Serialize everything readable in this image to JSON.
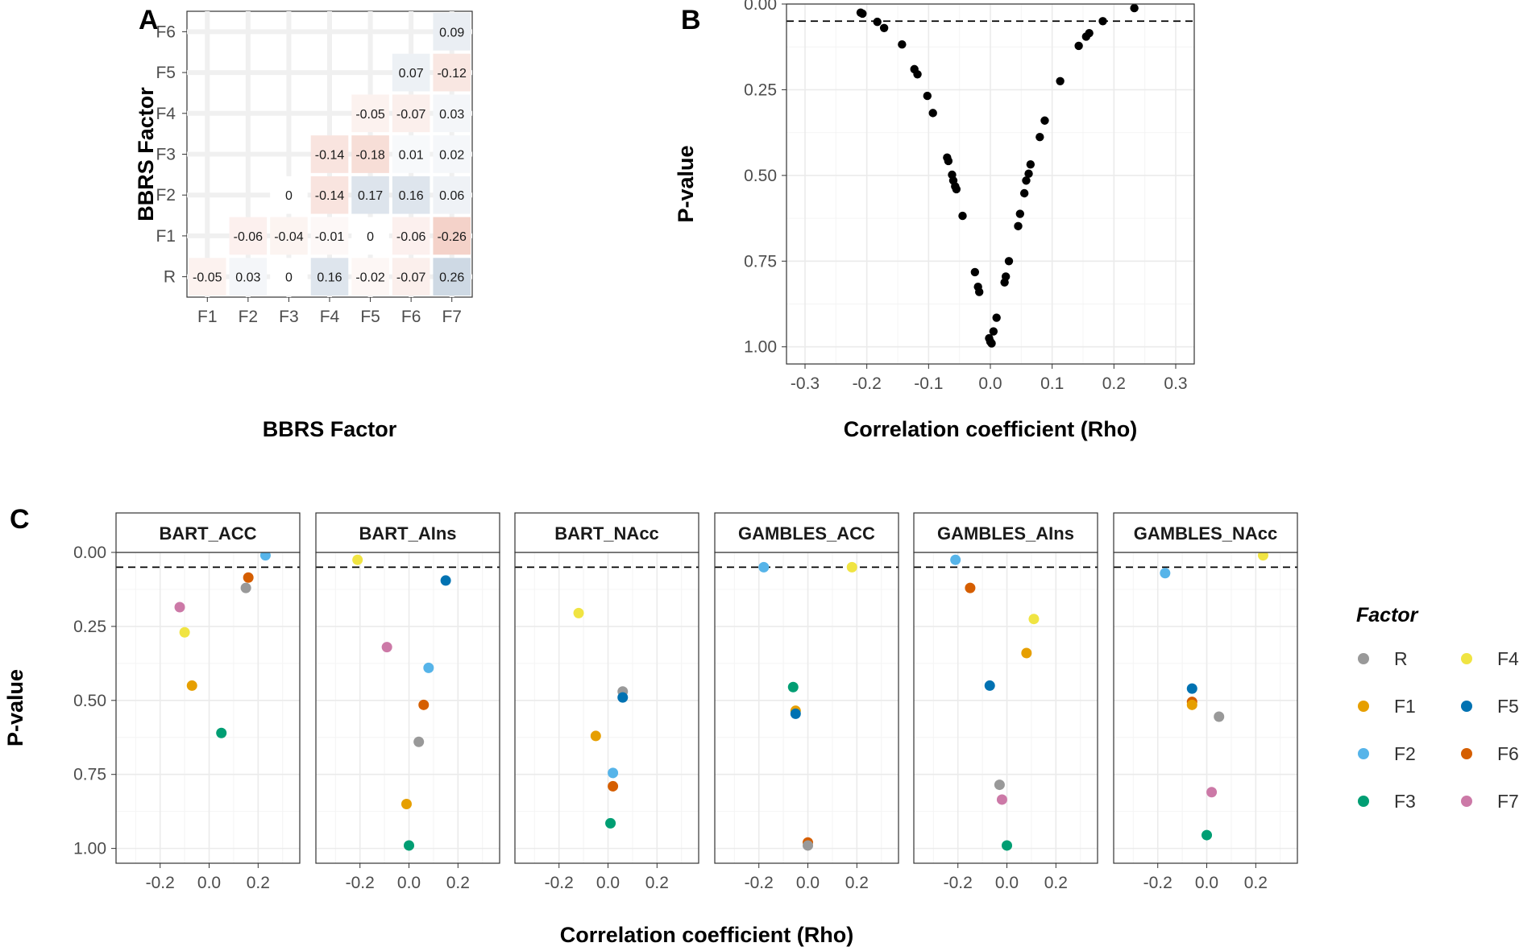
{
  "chart_data": [
    {
      "panel": "A",
      "type": "heatmap",
      "xlabel": "BBRS Factor",
      "ylabel": "BBRS Factor",
      "x_categories": [
        "F1",
        "F2",
        "F3",
        "F4",
        "F5",
        "F6",
        "F7"
      ],
      "y_categories": [
        "R",
        "F1",
        "F2",
        "F3",
        "F4",
        "F5",
        "F6"
      ],
      "cells": [
        {
          "x": "F1",
          "y": "R",
          "value": -0.05,
          "label": "-0.05"
        },
        {
          "x": "F2",
          "y": "R",
          "value": 0.03,
          "label": "0.03"
        },
        {
          "x": "F3",
          "y": "R",
          "value": 0,
          "label": "0"
        },
        {
          "x": "F4",
          "y": "R",
          "value": 0.16,
          "label": "0.16"
        },
        {
          "x": "F5",
          "y": "R",
          "value": -0.02,
          "label": "-0.02"
        },
        {
          "x": "F6",
          "y": "R",
          "value": -0.07,
          "label": "-0.07"
        },
        {
          "x": "F7",
          "y": "R",
          "value": 0.26,
          "label": "0.26"
        },
        {
          "x": "F2",
          "y": "F1",
          "value": -0.06,
          "label": "-0.06"
        },
        {
          "x": "F3",
          "y": "F1",
          "value": -0.04,
          "label": "-0.04"
        },
        {
          "x": "F4",
          "y": "F1",
          "value": -0.01,
          "label": "-0.01"
        },
        {
          "x": "F5",
          "y": "F1",
          "value": 0,
          "label": "0"
        },
        {
          "x": "F6",
          "y": "F1",
          "value": -0.06,
          "label": "-0.06"
        },
        {
          "x": "F7",
          "y": "F1",
          "value": -0.26,
          "label": "-0.26"
        },
        {
          "x": "F3",
          "y": "F2",
          "value": 0,
          "label": "0"
        },
        {
          "x": "F4",
          "y": "F2",
          "value": -0.14,
          "label": "-0.14"
        },
        {
          "x": "F5",
          "y": "F2",
          "value": 0.17,
          "label": "0.17"
        },
        {
          "x": "F6",
          "y": "F2",
          "value": 0.16,
          "label": "0.16"
        },
        {
          "x": "F7",
          "y": "F2",
          "value": 0.06,
          "label": "0.06"
        },
        {
          "x": "F4",
          "y": "F3",
          "value": -0.14,
          "label": "-0.14"
        },
        {
          "x": "F5",
          "y": "F3",
          "value": -0.18,
          "label": "-0.18"
        },
        {
          "x": "F6",
          "y": "F3",
          "value": 0.01,
          "label": "0.01"
        },
        {
          "x": "F7",
          "y": "F3",
          "value": 0.02,
          "label": "0.02"
        },
        {
          "x": "F5",
          "y": "F4",
          "value": -0.05,
          "label": "-0.05"
        },
        {
          "x": "F6",
          "y": "F4",
          "value": -0.07,
          "label": "-0.07"
        },
        {
          "x": "F7",
          "y": "F4",
          "value": 0.03,
          "label": "0.03"
        },
        {
          "x": "F6",
          "y": "F5",
          "value": 0.07,
          "label": "0.07"
        },
        {
          "x": "F7",
          "y": "F5",
          "value": -0.12,
          "label": "-0.12"
        },
        {
          "x": "F7",
          "y": "F6",
          "value": 0.09,
          "label": "0.09"
        }
      ],
      "colors": {
        "positive": "#5b7fa6",
        "negative": "#e07a5f"
      }
    },
    {
      "panel": "B",
      "type": "scatter",
      "xlabel": "Correlation coefficient (Rho)",
      "ylabel": "P-value",
      "xlim": [
        -0.33,
        0.33
      ],
      "ylim": [
        0,
        1.05
      ],
      "y_reversed": true,
      "xticks": [
        "-0.3",
        "-0.2",
        "-0.1",
        "0.0",
        "0.1",
        "0.2",
        "0.3"
      ],
      "yticks": [
        "0.00",
        "0.25",
        "0.50",
        "0.75",
        "1.00"
      ],
      "threshold": 0.05,
      "point_color": "#000000",
      "points": [
        [
          -0.21,
          0.025
        ],
        [
          -0.207,
          0.028
        ],
        [
          -0.183,
          0.052
        ],
        [
          -0.172,
          0.07
        ],
        [
          -0.143,
          0.118
        ],
        [
          -0.123,
          0.19
        ],
        [
          -0.118,
          0.205
        ],
        [
          -0.102,
          0.268
        ],
        [
          -0.093,
          0.318
        ],
        [
          -0.07,
          0.448
        ],
        [
          -0.068,
          0.458
        ],
        [
          -0.062,
          0.498
        ],
        [
          -0.06,
          0.515
        ],
        [
          -0.057,
          0.532
        ],
        [
          -0.055,
          0.54
        ],
        [
          -0.045,
          0.618
        ],
        [
          -0.025,
          0.782
        ],
        [
          -0.02,
          0.825
        ],
        [
          -0.018,
          0.84
        ],
        [
          -0.002,
          0.975
        ],
        [
          0.0,
          0.985
        ],
        [
          0.002,
          0.99
        ],
        [
          0.005,
          0.955
        ],
        [
          0.01,
          0.915
        ],
        [
          0.023,
          0.812
        ],
        [
          0.025,
          0.795
        ],
        [
          0.03,
          0.75
        ],
        [
          0.045,
          0.648
        ],
        [
          0.048,
          0.612
        ],
        [
          0.055,
          0.552
        ],
        [
          0.058,
          0.515
        ],
        [
          0.062,
          0.495
        ],
        [
          0.065,
          0.468
        ],
        [
          0.08,
          0.388
        ],
        [
          0.088,
          0.34
        ],
        [
          0.113,
          0.225
        ],
        [
          0.143,
          0.122
        ],
        [
          0.155,
          0.095
        ],
        [
          0.16,
          0.085
        ],
        [
          0.182,
          0.05
        ],
        [
          0.233,
          0.012
        ]
      ]
    },
    {
      "panel": "C",
      "type": "scatter",
      "xlabel": "Correlation coefficient (Rho)",
      "ylabel": "P-value",
      "xlim": [
        -0.38,
        0.37
      ],
      "ylim": [
        0,
        1.05
      ],
      "y_reversed": true,
      "xticks": [
        "-0.2",
        "0.0",
        "0.2"
      ],
      "yticks": [
        "0.00",
        "0.25",
        "0.50",
        "0.75",
        "1.00"
      ],
      "threshold": 0.05,
      "legend_title": "Factor",
      "legend": [
        {
          "name": "R",
          "color": "#999999"
        },
        {
          "name": "F1",
          "color": "#E69F00"
        },
        {
          "name": "F2",
          "color": "#56B4E9"
        },
        {
          "name": "F3",
          "color": "#009E73"
        },
        {
          "name": "F4",
          "color": "#F0E442"
        },
        {
          "name": "F5",
          "color": "#0072B2"
        },
        {
          "name": "F6",
          "color": "#D55E00"
        },
        {
          "name": "F7",
          "color": "#CC79A7"
        }
      ],
      "facets": [
        {
          "name": "BART_ACC",
          "points": [
            {
              "f": "F2",
              "x": 0.23,
              "y": 0.01
            },
            {
              "f": "F6",
              "x": 0.16,
              "y": 0.085
            },
            {
              "f": "R",
              "x": 0.15,
              "y": 0.12
            },
            {
              "f": "F7",
              "x": -0.12,
              "y": 0.185
            },
            {
              "f": "F4",
              "x": -0.1,
              "y": 0.27
            },
            {
              "f": "F1",
              "x": -0.07,
              "y": 0.45
            },
            {
              "f": "F3",
              "x": 0.05,
              "y": 0.61
            }
          ]
        },
        {
          "name": "BART_AIns",
          "points": [
            {
              "f": "F4",
              "x": -0.21,
              "y": 0.025
            },
            {
              "f": "F5",
              "x": 0.15,
              "y": 0.095
            },
            {
              "f": "F7",
              "x": -0.09,
              "y": 0.32
            },
            {
              "f": "F2",
              "x": 0.08,
              "y": 0.39
            },
            {
              "f": "F6",
              "x": 0.06,
              "y": 0.515
            },
            {
              "f": "R",
              "x": 0.04,
              "y": 0.64
            },
            {
              "f": "F1",
              "x": -0.01,
              "y": 0.85
            },
            {
              "f": "F3",
              "x": 0.0,
              "y": 0.99
            }
          ]
        },
        {
          "name": "BART_NAcc",
          "points": [
            {
              "f": "F4",
              "x": -0.12,
              "y": 0.205
            },
            {
              "f": "R",
              "x": 0.06,
              "y": 0.47
            },
            {
              "f": "F5",
              "x": 0.06,
              "y": 0.49
            },
            {
              "f": "F1",
              "x": -0.05,
              "y": 0.62
            },
            {
              "f": "F2",
              "x": 0.02,
              "y": 0.745
            },
            {
              "f": "F6",
              "x": 0.02,
              "y": 0.79
            },
            {
              "f": "F3",
              "x": 0.01,
              "y": 0.915
            }
          ]
        },
        {
          "name": "GAMBLES_ACC",
          "points": [
            {
              "f": "F2",
              "x": -0.18,
              "y": 0.05
            },
            {
              "f": "F4",
              "x": 0.18,
              "y": 0.05
            },
            {
              "f": "F3",
              "x": -0.06,
              "y": 0.455
            },
            {
              "f": "F1",
              "x": -0.05,
              "y": 0.535
            },
            {
              "f": "F5",
              "x": -0.05,
              "y": 0.545
            },
            {
              "f": "F6",
              "x": 0.0,
              "y": 0.98
            },
            {
              "f": "R",
              "x": 0.0,
              "y": 0.99
            }
          ]
        },
        {
          "name": "GAMBLES_AIns",
          "points": [
            {
              "f": "F2",
              "x": -0.21,
              "y": 0.025
            },
            {
              "f": "F6",
              "x": -0.15,
              "y": 0.12
            },
            {
              "f": "F4",
              "x": 0.11,
              "y": 0.225
            },
            {
              "f": "F1",
              "x": 0.08,
              "y": 0.34
            },
            {
              "f": "F5",
              "x": -0.07,
              "y": 0.45
            },
            {
              "f": "R",
              "x": -0.03,
              "y": 0.785
            },
            {
              "f": "F7",
              "x": -0.02,
              "y": 0.835
            },
            {
              "f": "F3",
              "x": 0.0,
              "y": 0.99
            }
          ]
        },
        {
          "name": "GAMBLES_NAcc",
          "points": [
            {
              "f": "F4",
              "x": 0.23,
              "y": 0.01
            },
            {
              "f": "F2",
              "x": -0.17,
              "y": 0.07
            },
            {
              "f": "F5",
              "x": -0.06,
              "y": 0.46
            },
            {
              "f": "F6",
              "x": -0.06,
              "y": 0.505
            },
            {
              "f": "F1",
              "x": -0.06,
              "y": 0.515
            },
            {
              "f": "R",
              "x": 0.05,
              "y": 0.555
            },
            {
              "f": "F7",
              "x": 0.02,
              "y": 0.81
            },
            {
              "f": "F3",
              "x": 0.0,
              "y": 0.955
            }
          ]
        }
      ]
    }
  ],
  "labels": {
    "panel_a": "A",
    "panel_b": "B",
    "panel_c": "C"
  }
}
